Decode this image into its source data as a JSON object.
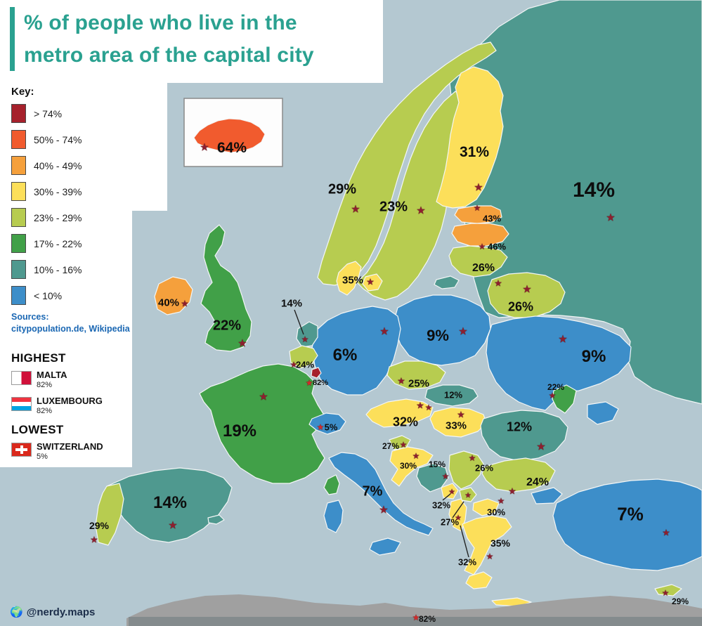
{
  "title": {
    "line1": "% of people who live in the",
    "line2": "metro area of the capital city",
    "accent_color": "#2aa190"
  },
  "key": {
    "heading": "Key:",
    "entries": [
      {
        "label": "> 74%",
        "color": "#a6212c"
      },
      {
        "label": "50% - 74%",
        "color": "#f15b2e"
      },
      {
        "label": "40% - 49%",
        "color": "#f5a03c"
      },
      {
        "label": "30% - 39%",
        "color": "#fcdf5a"
      },
      {
        "label": "23% - 29%",
        "color": "#b7cc50"
      },
      {
        "label": "17% - 22%",
        "color": "#41a048"
      },
      {
        "label": "10% - 16%",
        "color": "#4f998f"
      },
      {
        "label": "< 10%",
        "color": "#3d8ec9"
      }
    ]
  },
  "sources": {
    "heading": "Sources:",
    "text": "citypopulation.de, Wikipedia"
  },
  "highlights": {
    "highest_heading": "HIGHEST",
    "highest": [
      {
        "country": "MALTA",
        "value": "82%"
      },
      {
        "country": "LUXEMBOURG",
        "value": "82%"
      }
    ],
    "lowest_heading": "LOWEST",
    "lowest": [
      {
        "country": "SWITZERLAND",
        "value": "5%"
      }
    ]
  },
  "attribution": {
    "handle": "@nerdy.maps"
  },
  "icons": {
    "capital_star": "★",
    "globe": "🌍"
  },
  "map": {
    "sea_color": "#b4c8d1",
    "africa_color": "#a0a0a0",
    "bottom_bar_color": "#848b8d"
  },
  "countries": {
    "iceland": {
      "value": "64%",
      "color": "#f15b2e"
    },
    "norway": {
      "value": "29%",
      "color": "#b7cc50"
    },
    "sweden": {
      "value": "23%",
      "color": "#b7cc50"
    },
    "finland": {
      "value": "31%",
      "color": "#fcdf5a"
    },
    "denmark": {
      "value": "35%",
      "color": "#fcdf5a"
    },
    "russia": {
      "value": "14%",
      "color": "#4f998f"
    },
    "estonia": {
      "value": "43%",
      "color": "#f5a03c"
    },
    "latvia": {
      "value": "46%",
      "color": "#f5a03c"
    },
    "lithuania": {
      "value": "26%",
      "color": "#b7cc50"
    },
    "belarus": {
      "value": "26%",
      "color": "#b7cc50"
    },
    "poland": {
      "value": "9%",
      "color": "#3d8ec9"
    },
    "ukraine": {
      "value": "9%",
      "color": "#3d8ec9"
    },
    "moldova": {
      "value": "22%",
      "color": "#41a048"
    },
    "germany": {
      "value": "6%",
      "color": "#3d8ec9"
    },
    "netherlands": {
      "value": "14%",
      "color": "#4f998f"
    },
    "belgium": {
      "value": "24%",
      "color": "#b7cc50"
    },
    "luxembourg": {
      "value": "82%",
      "color": "#a6212c"
    },
    "czechia": {
      "value": "25%",
      "color": "#b7cc50"
    },
    "slovakia": {
      "value": "12%",
      "color": "#4f998f"
    },
    "austria": {
      "value": "32%",
      "color": "#fcdf5a"
    },
    "hungary": {
      "value": "33%",
      "color": "#fcdf5a"
    },
    "switzerland": {
      "value": "5%",
      "color": "#3d8ec9"
    },
    "france": {
      "value": "19%",
      "color": "#41a048"
    },
    "uk": {
      "value": "22%",
      "color": "#41a048"
    },
    "ireland": {
      "value": "40%",
      "color": "#f5a03c"
    },
    "spain": {
      "value": "14%",
      "color": "#4f998f"
    },
    "portugal": {
      "value": "29%",
      "color": "#b7cc50"
    },
    "italy": {
      "value": "7%",
      "color": "#3d8ec9"
    },
    "slovenia": {
      "value": "27%",
      "color": "#b7cc50"
    },
    "croatia": {
      "value": "30%",
      "color": "#fcdf5a"
    },
    "bosnia": {
      "value": "15%",
      "color": "#4f998f"
    },
    "serbia": {
      "value": "26%",
      "color": "#b7cc50"
    },
    "montenegro": {
      "value": "32%",
      "color": "#fcdf5a"
    },
    "kosovo": {
      "value": "27%",
      "color": "#b7cc50"
    },
    "north_macedonia": {
      "value": "30%",
      "color": "#fcdf5a"
    },
    "albania": {
      "value": "32%",
      "color": "#fcdf5a"
    },
    "greece": {
      "value": "35%",
      "color": "#fcdf5a"
    },
    "bulgaria": {
      "value": "24%",
      "color": "#b7cc50"
    },
    "romania": {
      "value": "12%",
      "color": "#4f998f"
    },
    "turkey": {
      "value": "7%",
      "color": "#3d8ec9"
    },
    "cyprus": {
      "value": "29%",
      "color": "#b7cc50"
    },
    "malta": {
      "value": "82%",
      "color": "#a6212c"
    }
  }
}
